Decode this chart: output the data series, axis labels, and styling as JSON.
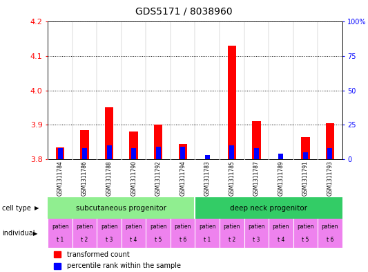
{
  "title": "GDS5171 / 8038960",
  "samples": [
    "GSM1311784",
    "GSM1311786",
    "GSM1311788",
    "GSM1311790",
    "GSM1311792",
    "GSM1311794",
    "GSM1311783",
    "GSM1311785",
    "GSM1311787",
    "GSM1311789",
    "GSM1311791",
    "GSM1311793"
  ],
  "red_values": [
    3.835,
    3.885,
    3.95,
    3.88,
    3.9,
    3.845,
    3.8,
    4.13,
    3.91,
    3.8,
    3.865,
    3.905
  ],
  "blue_values_pct": [
    8,
    8,
    10,
    8,
    9,
    9,
    3,
    10,
    8,
    4,
    5,
    8
  ],
  "ymin": 3.8,
  "ymax": 4.2,
  "yticks": [
    3.8,
    3.9,
    4.0,
    4.1,
    4.2
  ],
  "y2min": 0,
  "y2max": 100,
  "y2ticks": [
    0,
    25,
    50,
    75,
    100
  ],
  "y2ticklabels": [
    "0",
    "25",
    "50",
    "75",
    "100%"
  ],
  "cell_type_labels": [
    "subcutaneous progenitor",
    "deep neck progenitor"
  ],
  "individual_top_labels": [
    "patien",
    "patien",
    "patien",
    "patien",
    "patien",
    "patien",
    "patien",
    "patien",
    "patien",
    "patien",
    "patien",
    "patien"
  ],
  "individual_bot_labels": [
    "t 1",
    "t 2",
    "t 3",
    "t 4",
    "t 5",
    "t 6",
    "t 1",
    "t 2",
    "t 3",
    "t 4",
    "t 5",
    "t 6"
  ],
  "legend_red": "transformed count",
  "legend_blue": "percentile rank within the sample",
  "cell_type_bg1": "#90EE90",
  "cell_type_bg2": "#33CC66",
  "individual_bg": "#EE82EE",
  "sample_bg": "#C8C8C8",
  "bar_width": 0.35,
  "blue_bar_width": 0.2
}
